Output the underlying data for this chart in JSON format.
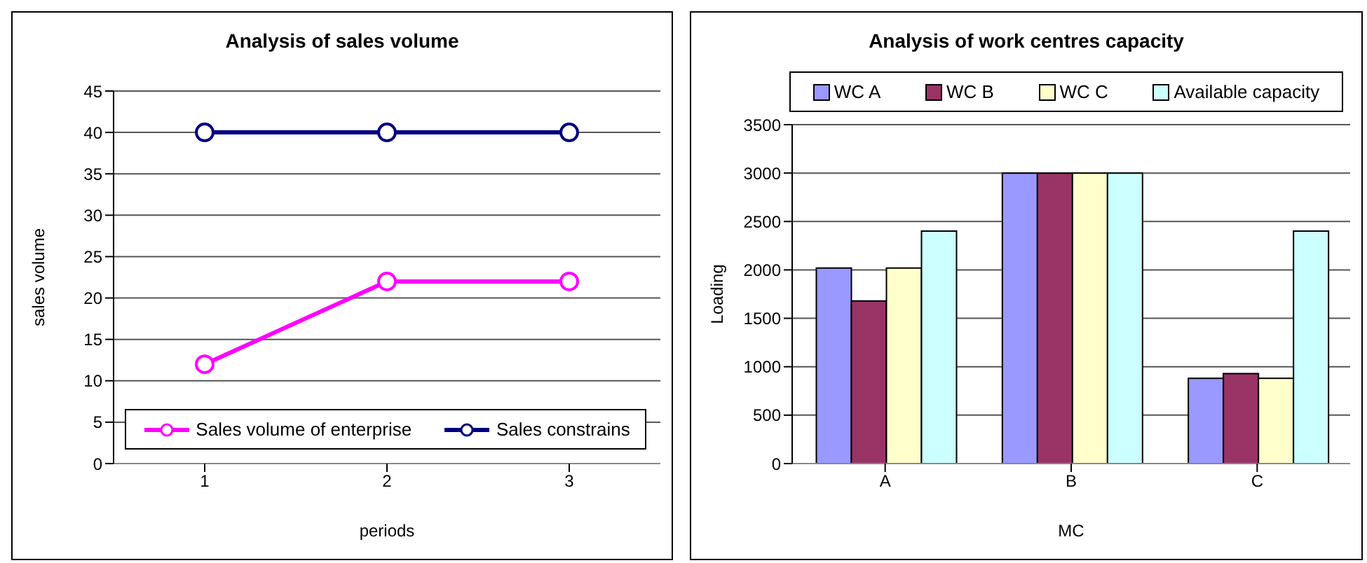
{
  "chart_data": [
    {
      "type": "line",
      "title": "Analysis of sales volume",
      "xlabel": "periods",
      "ylabel": "sales volume",
      "categories": [
        "1",
        "2",
        "3"
      ],
      "ylim": [
        0,
        45
      ],
      "yticks": [
        0,
        5,
        10,
        15,
        20,
        25,
        30,
        35,
        40,
        45
      ],
      "grid": "y",
      "legend": "bottom",
      "marker": "circle",
      "line_style": "solid",
      "series": [
        {
          "name": "Sales volume of enterprise",
          "color": "#ff00ff",
          "values": [
            12,
            22,
            22
          ]
        },
        {
          "name": "Sales constrains",
          "color": "#000080",
          "values": [
            40,
            40,
            40
          ]
        }
      ]
    },
    {
      "type": "bar",
      "title": "Analysis of work centres capacity",
      "xlabel": "MC",
      "ylabel": "Loading",
      "categories": [
        "A",
        "B",
        "C"
      ],
      "ylim": [
        0,
        3500
      ],
      "yticks": [
        0,
        500,
        1000,
        1500,
        2000,
        2500,
        3000,
        3500
      ],
      "grid": "y",
      "legend": "top",
      "series": [
        {
          "name": "WC A",
          "color": "#9999ff",
          "values": [
            2020,
            3000,
            880
          ]
        },
        {
          "name": "WC B",
          "color": "#993366",
          "values": [
            1680,
            3000,
            930
          ]
        },
        {
          "name": "WC C",
          "color": "#ffffcc",
          "values": [
            2020,
            3000,
            880
          ]
        },
        {
          "name": "Available capacity",
          "color": "#ccffff",
          "values": [
            2400,
            3000,
            2400
          ]
        }
      ]
    }
  ]
}
